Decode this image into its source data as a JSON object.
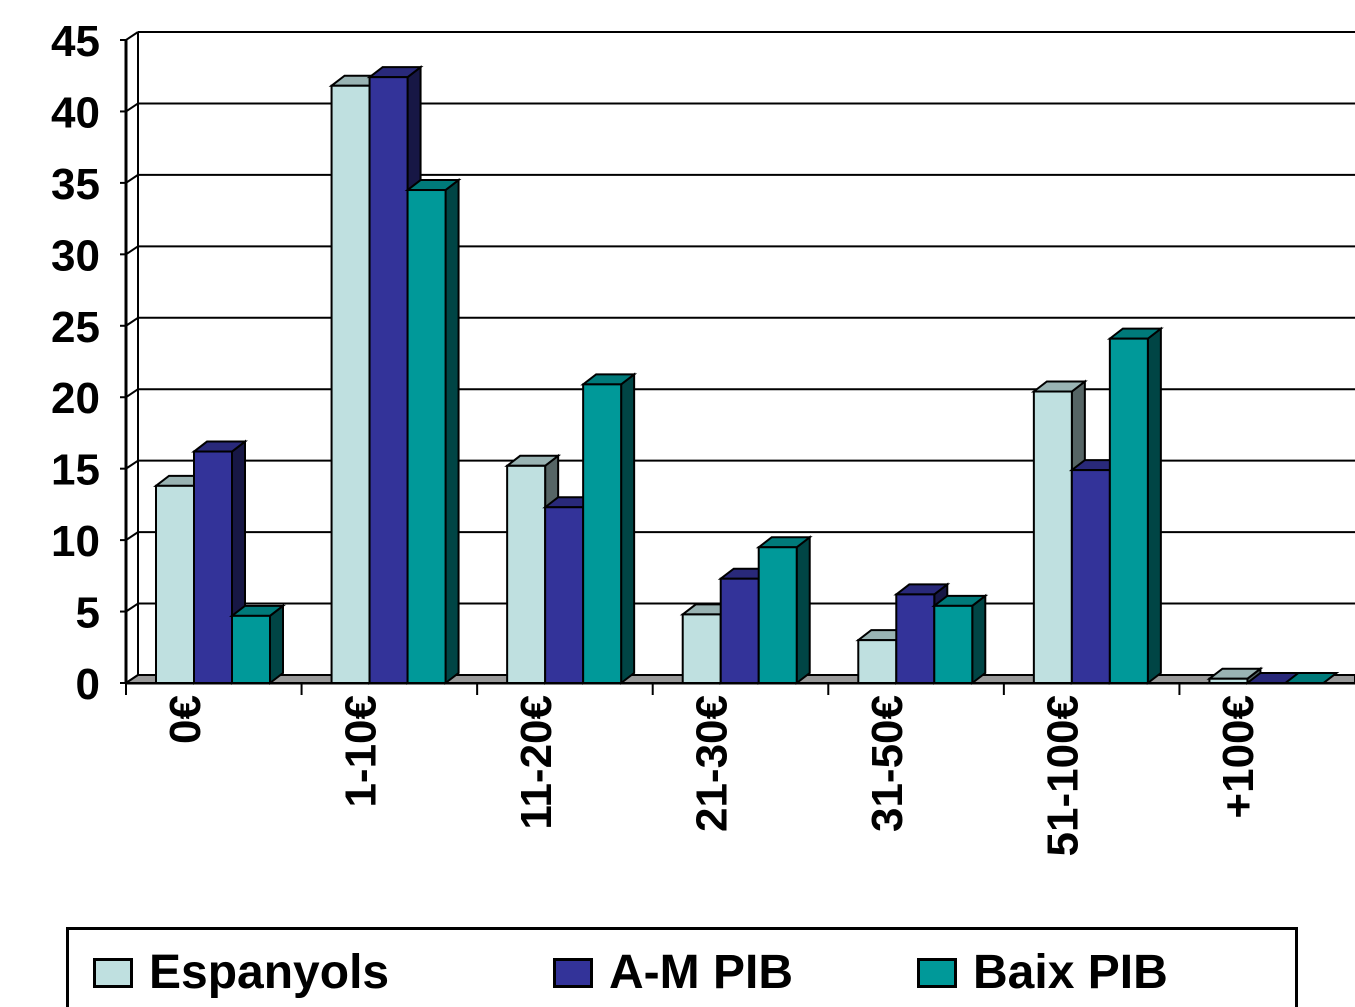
{
  "chart_data": {
    "type": "bar",
    "categories": [
      "0€",
      "1-10€",
      "11-20€",
      "21-30€",
      "31-50€",
      "51-100€",
      "+100€"
    ],
    "series": [
      {
        "name": "Espanyols",
        "values": [
          13.8,
          41.8,
          15.2,
          4.8,
          3.0,
          20.4,
          0.3
        ],
        "color": "#bfe0e0"
      },
      {
        "name": "A-M PIB",
        "values": [
          16.2,
          42.4,
          12.3,
          7.3,
          6.2,
          14.9,
          0
        ],
        "color": "#333399"
      },
      {
        "name": "Baix PIB",
        "values": [
          4.7,
          34.5,
          20.9,
          9.5,
          5.4,
          24.1,
          0
        ],
        "color": "#009999"
      }
    ],
    "yticks": [
      "0",
      "5",
      "10",
      "15",
      "20",
      "25",
      "30",
      "35",
      "40",
      "45"
    ],
    "ylim": [
      0,
      45
    ],
    "grid": true,
    "legend_position": "bottom",
    "title": "",
    "xlabel": "",
    "ylabel": ""
  }
}
